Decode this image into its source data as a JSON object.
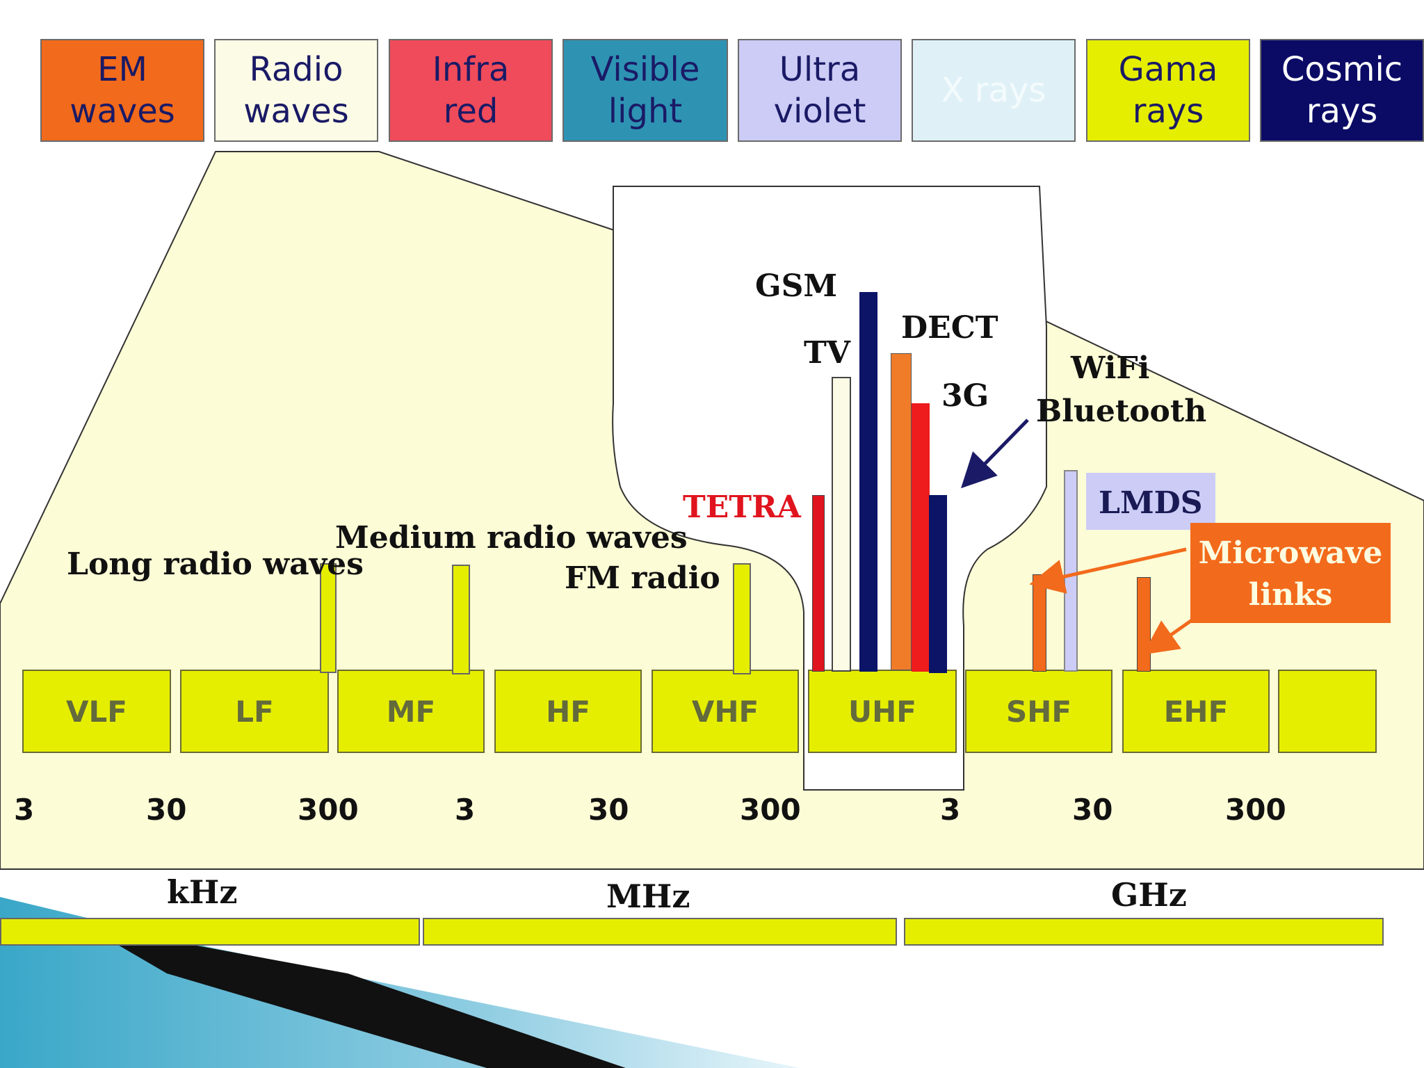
{
  "spectrum": [
    {
      "label": "EM\nwaves",
      "bg": "#f26a1b",
      "color": "#1a1a66"
    },
    {
      "label": "Radio\nwaves",
      "bg": "#fcfce6",
      "color": "#1a1a66"
    },
    {
      "label": "Infra\nred",
      "bg": "#f04b5a",
      "color": "#1a1a66"
    },
    {
      "label": "Visible\nlight",
      "bg": "#2e93b3",
      "color": "#1a1a66"
    },
    {
      "label": "Ultra\nviolet",
      "bg": "#ccccf6",
      "color": "#1a1a66"
    },
    {
      "label": "X rays",
      "bg": "#dff1f7",
      "color": "#f4fbfd"
    },
    {
      "label": "Gama\nrays",
      "bg": "#e6ee00",
      "color": "#1a1a66"
    },
    {
      "label": "Cosmic\nrays",
      "bg": "#0b0b66",
      "color": "#ffffff"
    }
  ],
  "bands": [
    "VLF",
    "LF",
    "MF",
    "HF",
    "VHF",
    "UHF",
    "SHF",
    "EHF",
    ""
  ],
  "frequency_ticks": [
    "3",
    "30",
    "300",
    "3",
    "30",
    "300",
    "3",
    "30",
    "300"
  ],
  "units": [
    "kHz",
    "MHz",
    "GHz"
  ],
  "labels": {
    "long_radio": "Long radio waves",
    "medium_radio": "Medium radio waves",
    "fm_radio": "FM radio",
    "gsm": "GSM",
    "tv": "TV",
    "dect": "DECT",
    "g3": "3G",
    "tetra": "TETRA",
    "wifi": "WiFi",
    "bluetooth": "Bluetooth",
    "lmds": "LMDS",
    "microwave": "Microwave\nlinks"
  },
  "colors": {
    "panel": "#fcfcd6",
    "band": "#e6ee00",
    "gsm": "#0b1466",
    "tv": "#fcfce6",
    "dect": "#f07c2a",
    "g3": "#ee1c1c",
    "tetra": "#e0141e",
    "tetra_text": "#e0141e",
    "lmds": "#ccccf6",
    "microwave": "#f26a1b",
    "arrow_blue": "#1a1a66"
  }
}
